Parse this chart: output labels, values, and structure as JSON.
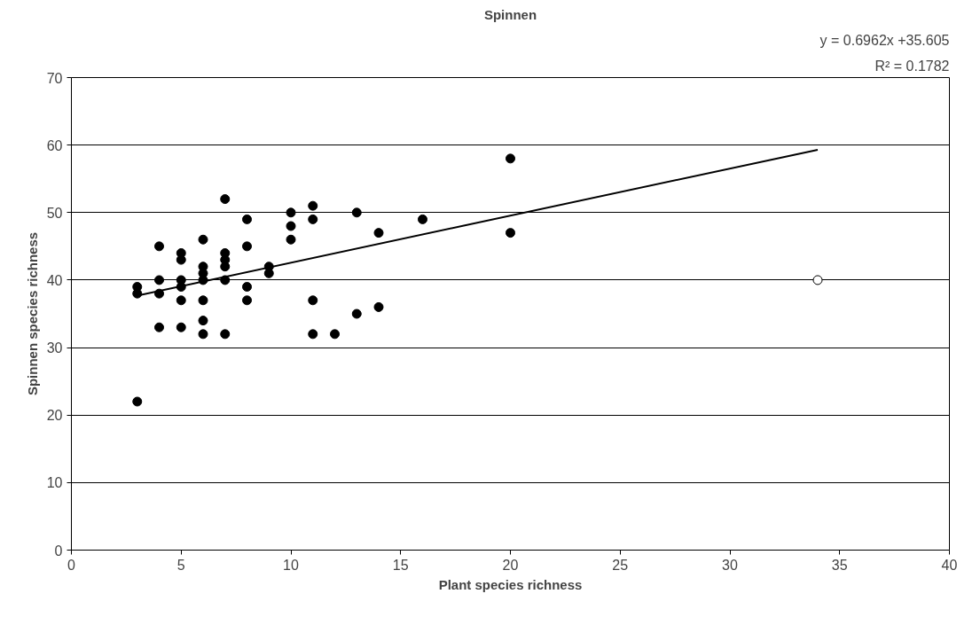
{
  "chart_data": {
    "type": "scatter",
    "title": "Spinnen",
    "xlabel": "Plant species richness",
    "ylabel": "Spinnen species richness",
    "xlim": [
      0,
      40
    ],
    "xticks": [
      0,
      5,
      10,
      15,
      20,
      25,
      30,
      35,
      40
    ],
    "ylim": [
      0,
      70
    ],
    "yticks": [
      0,
      10,
      20,
      30,
      40,
      50,
      60,
      70
    ],
    "grid": "y",
    "marker": "circle",
    "annotations": [
      "y = 0.6962x +35.605",
      "R² = 0.1782"
    ],
    "series": [
      {
        "color": "#000000",
        "x": [
          3,
          3,
          3,
          4,
          4,
          4,
          4,
          5,
          5,
          5,
          5,
          5,
          5,
          6,
          6,
          6,
          6,
          6,
          6,
          6,
          7,
          7,
          7,
          7,
          7,
          7,
          8,
          8,
          8,
          8,
          9,
          9,
          10,
          10,
          10,
          11,
          11,
          11,
          11,
          12,
          13,
          13,
          14,
          14,
          16,
          20,
          20
        ],
        "values": [
          39,
          38,
          22,
          45,
          40,
          38,
          33,
          44,
          43,
          40,
          39,
          37,
          33,
          46,
          42,
          41,
          40,
          37,
          34,
          32,
          52,
          44,
          43,
          42,
          40,
          32,
          49,
          45,
          39,
          37,
          42,
          41,
          50,
          48,
          46,
          51,
          49,
          37,
          32,
          32,
          50,
          35,
          47,
          36,
          49,
          58,
          47
        ]
      },
      {
        "color": "#ffffff",
        "x": [
          34
        ],
        "values": [
          40
        ]
      },
      {
        "type": "line",
        "marker": "none",
        "color": "#000000",
        "x": [
          3,
          34
        ],
        "values": [
          37.7,
          59.3
        ]
      }
    ]
  }
}
